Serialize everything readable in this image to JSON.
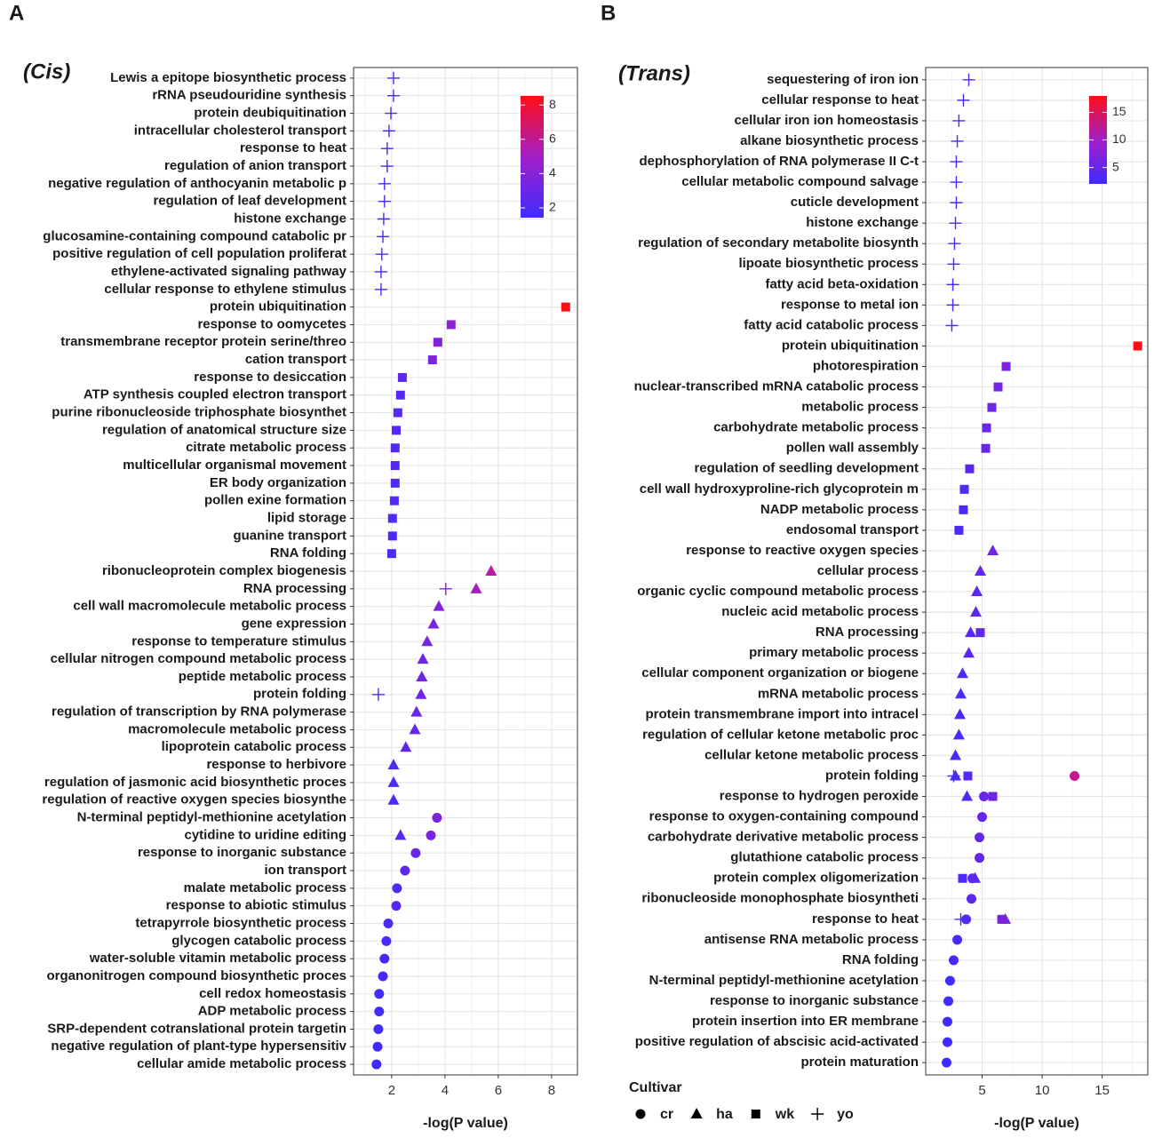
{
  "chart_data": [
    {
      "type": "scatter",
      "panel": "A",
      "title": "(Cis)",
      "x_label": "-log(P value)",
      "categories": [
        "Lewis a epitope biosynthetic process",
        "rRNA pseudouridine synthesis",
        "protein deubiquitination",
        "intracellular cholesterol transport",
        "response to heat",
        "regulation of anion transport",
        "negative regulation of anthocyanin metabolic p",
        "regulation of leaf development",
        "histone exchange",
        "glucosamine-containing compound catabolic pr",
        "positive regulation of cell population proliferat",
        "ethylene-activated signaling pathway",
        "cellular response to ethylene stimulus",
        "protein ubiquitination",
        "response to oomycetes",
        "transmembrane receptor protein serine/threo",
        "cation transport",
        "response to desiccation",
        "ATP synthesis coupled electron transport",
        "purine ribonucleoside triphosphate biosynthet",
        "regulation of anatomical structure size",
        "citrate metabolic process",
        "multicellular organismal movement",
        "ER body organization",
        "pollen exine formation",
        "lipid storage",
        "guanine transport",
        "RNA folding",
        "ribonucleoprotein complex biogenesis",
        "RNA processing",
        "cell wall macromolecule metabolic process",
        "gene expression",
        "response to temperature stimulus",
        "cellular nitrogen compound metabolic process",
        "peptide metabolic process",
        "protein folding",
        "regulation of transcription by RNA polymerase",
        "macromolecule metabolic process",
        "lipoprotein catabolic process",
        "response to herbivore",
        "regulation of jasmonic acid biosynthetic proces",
        "regulation of reactive oxygen species biosynthe",
        "N-terminal peptidyl-methionine acetylation",
        "cytidine to uridine editing",
        "response to inorganic substance",
        "ion transport",
        "malate metabolic process",
        "response to abiotic stimulus",
        "tetrapyrrole biosynthetic process",
        "glycogen catabolic process",
        "water-soluble vitamin metabolic process",
        "organonitrogen compound biosynthetic proces",
        "cell redox homeostasis",
        "ADP metabolic process",
        "SRP-dependent cotranslational protein targetin",
        "negative regulation of plant-type hypersensitiv",
        "cellular amide metabolic process"
      ],
      "series": [
        {
          "name": "cr",
          "shape": "circle",
          "values": [
            null,
            null,
            null,
            null,
            null,
            null,
            null,
            null,
            null,
            null,
            null,
            null,
            null,
            null,
            null,
            null,
            null,
            null,
            null,
            null,
            null,
            null,
            null,
            null,
            null,
            null,
            null,
            null,
            null,
            null,
            null,
            null,
            null,
            null,
            null,
            null,
            null,
            null,
            null,
            null,
            null,
            null,
            3.7,
            3.47,
            2.9,
            2.5,
            2.2,
            2.17,
            1.87,
            1.8,
            1.73,
            1.67,
            1.53,
            1.53,
            1.5,
            1.47,
            1.43
          ]
        },
        {
          "name": "ha",
          "shape": "triangle",
          "values": [
            null,
            null,
            null,
            null,
            null,
            null,
            null,
            null,
            null,
            null,
            null,
            null,
            null,
            null,
            null,
            null,
            null,
            null,
            null,
            null,
            null,
            null,
            null,
            null,
            null,
            null,
            null,
            null,
            5.73,
            5.17,
            3.77,
            3.57,
            3.33,
            3.17,
            3.13,
            3.1,
            2.93,
            2.87,
            2.53,
            2.07,
            2.07,
            2.07,
            null,
            2.33,
            null,
            null,
            null,
            null,
            null,
            null,
            null,
            null,
            null,
            null,
            null,
            null,
            null
          ]
        },
        {
          "name": "wk",
          "shape": "square",
          "values": [
            null,
            null,
            null,
            null,
            null,
            null,
            null,
            null,
            null,
            null,
            null,
            null,
            null,
            8.53,
            4.23,
            3.73,
            3.53,
            2.4,
            2.33,
            2.23,
            2.17,
            2.13,
            2.13,
            2.13,
            2.1,
            2.03,
            2.03,
            2.0,
            null,
            null,
            null,
            null,
            null,
            null,
            null,
            null,
            null,
            null,
            null,
            null,
            null,
            null,
            null,
            null,
            null,
            null,
            null,
            null,
            null,
            null,
            null,
            null,
            null,
            null,
            null,
            null,
            null
          ]
        },
        {
          "name": "yo",
          "shape": "plus",
          "values": [
            2.07,
            2.07,
            1.97,
            1.9,
            1.83,
            1.83,
            1.73,
            1.73,
            1.7,
            1.67,
            1.63,
            1.6,
            1.6,
            null,
            null,
            null,
            null,
            null,
            null,
            null,
            null,
            null,
            null,
            null,
            null,
            null,
            null,
            null,
            null,
            4.03,
            null,
            null,
            null,
            null,
            null,
            1.5,
            null,
            null,
            null,
            null,
            null,
            null,
            null,
            null,
            null,
            null,
            null,
            null,
            null,
            null,
            null,
            null,
            null,
            null,
            null,
            null,
            null
          ]
        }
      ],
      "xlim": [
        0.57,
        8.97
      ],
      "xticks": [
        2,
        4,
        6,
        8
      ],
      "grid": true,
      "colorscale": [
        "#3f2bff",
        "#a21fc8",
        "#ff0d14"
      ],
      "color_range": [
        1.43,
        8.53
      ],
      "color_ticks": [
        2,
        4,
        6,
        8
      ]
    },
    {
      "type": "scatter",
      "panel": "B",
      "title": "(Trans)",
      "x_label": "-log(P value)",
      "legend_title": "Cultivar",
      "categories": [
        "sequestering of iron ion",
        "cellular response to heat",
        "cellular iron ion homeostasis",
        "alkane biosynthetic process",
        "dephosphorylation of RNA polymerase II C-t",
        "cellular metabolic compound salvage",
        "cuticle development",
        "histone exchange",
        "regulation of secondary metabolite biosynth",
        "lipoate biosynthetic process",
        "fatty acid beta-oxidation",
        "response to metal ion",
        "fatty acid catabolic process",
        "protein ubiquitination",
        "photorespiration",
        "nuclear-transcribed mRNA catabolic process",
        "metabolic process",
        "carbohydrate metabolic process",
        "pollen wall assembly",
        "regulation of seedling development",
        "cell wall hydroxyproline-rich glycoprotein m",
        "NADP metabolic process",
        "endosomal transport",
        "response to reactive oxygen species",
        "cellular process",
        "organic cyclic compound metabolic process",
        "nucleic acid metabolic process",
        "RNA processing",
        "primary metabolic process",
        "cellular component organization or biogene",
        "mRNA metabolic process",
        "protein transmembrane import into intracel",
        "regulation of cellular ketone metabolic proc",
        "cellular ketone metabolic process",
        "protein folding",
        "response to hydrogen peroxide",
        "response to oxygen-containing compound",
        "carbohydrate derivative metabolic process",
        "glutathione catabolic process",
        "protein complex oligomerization",
        "ribonucleoside monophosphate biosyntheti",
        "response to heat",
        "antisense RNA metabolic process",
        "RNA folding",
        "N-terminal peptidyl-methionine acetylation",
        "response to inorganic substance",
        "protein insertion into ER membrane",
        "positive regulation of abscisic acid-activated",
        "protein maturation"
      ],
      "series": [
        {
          "name": "cr",
          "shape": "circle",
          "values": [
            null,
            null,
            null,
            null,
            null,
            null,
            null,
            null,
            null,
            null,
            null,
            null,
            null,
            null,
            null,
            null,
            null,
            null,
            null,
            null,
            null,
            null,
            null,
            null,
            null,
            null,
            null,
            null,
            null,
            null,
            null,
            null,
            null,
            null,
            12.7,
            5.15,
            5.0,
            4.78,
            4.78,
            4.19,
            4.11,
            3.67,
            2.93,
            2.63,
            2.33,
            2.19,
            2.11,
            2.11,
            2.04
          ]
        },
        {
          "name": "ha",
          "shape": "triangle",
          "values": [
            null,
            null,
            null,
            null,
            null,
            null,
            null,
            null,
            null,
            null,
            null,
            null,
            null,
            null,
            null,
            null,
            null,
            null,
            null,
            null,
            null,
            null,
            null,
            5.89,
            4.85,
            4.56,
            4.48,
            4.04,
            3.89,
            3.37,
            3.22,
            3.15,
            3.07,
            2.78,
            2.78,
            3.74,
            null,
            null,
            null,
            4.41,
            null,
            6.93,
            null,
            null,
            null,
            null,
            null,
            null,
            null
          ]
        },
        {
          "name": "wk",
          "shape": "square",
          "values": [
            null,
            null,
            null,
            null,
            null,
            null,
            null,
            null,
            null,
            null,
            null,
            null,
            null,
            17.96,
            7.0,
            6.33,
            5.81,
            5.37,
            5.3,
            3.96,
            3.52,
            3.44,
            3.07,
            null,
            null,
            null,
            null,
            4.85,
            null,
            null,
            null,
            null,
            null,
            null,
            3.81,
            5.89,
            null,
            null,
            null,
            3.37,
            null,
            6.63,
            null,
            null,
            null,
            null,
            null,
            null,
            null
          ]
        },
        {
          "name": "yo",
          "shape": "plus",
          "values": [
            3.89,
            3.44,
            3.07,
            2.93,
            2.85,
            2.85,
            2.85,
            2.78,
            2.7,
            2.63,
            2.56,
            2.56,
            2.48,
            null,
            null,
            null,
            null,
            null,
            null,
            null,
            null,
            null,
            null,
            null,
            null,
            null,
            null,
            null,
            null,
            null,
            null,
            null,
            null,
            null,
            2.63,
            null,
            null,
            null,
            null,
            null,
            null,
            3.22,
            null,
            null,
            null,
            null,
            null,
            null,
            null
          ]
        }
      ],
      "xlim": [
        0.3,
        18.8
      ],
      "xticks": [
        5,
        10,
        15
      ],
      "grid": true,
      "colorscale": [
        "#3f2bff",
        "#a21fc8",
        "#ff0d14"
      ],
      "color_range": [
        2.04,
        17.96
      ],
      "color_ticks": [
        5,
        10,
        15
      ]
    }
  ]
}
